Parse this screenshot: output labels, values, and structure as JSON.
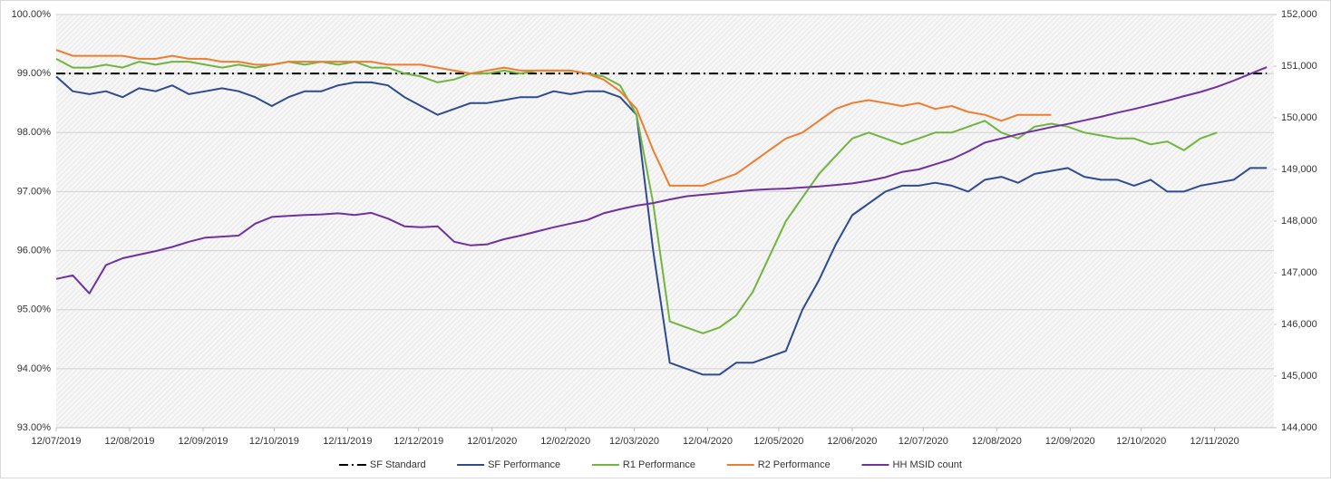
{
  "chart_data": {
    "type": "line",
    "x": [
      "2019-07-12",
      "2019-07-19",
      "2019-07-26",
      "2019-08-02",
      "2019-08-09",
      "2019-08-16",
      "2019-08-23",
      "2019-08-30",
      "2019-09-06",
      "2019-09-13",
      "2019-09-20",
      "2019-09-27",
      "2019-10-04",
      "2019-10-11",
      "2019-10-18",
      "2019-10-25",
      "2019-11-01",
      "2019-11-08",
      "2019-11-15",
      "2019-11-22",
      "2019-11-29",
      "2019-12-06",
      "2019-12-13",
      "2019-12-20",
      "2019-12-27",
      "2020-01-03",
      "2020-01-10",
      "2020-01-17",
      "2020-01-24",
      "2020-01-31",
      "2020-02-07",
      "2020-02-14",
      "2020-02-21",
      "2020-02-28",
      "2020-03-06",
      "2020-03-13",
      "2020-03-20",
      "2020-03-27",
      "2020-04-03",
      "2020-04-10",
      "2020-04-17",
      "2020-04-24",
      "2020-05-01",
      "2020-05-08",
      "2020-05-15",
      "2020-05-22",
      "2020-05-29",
      "2020-06-05",
      "2020-06-12",
      "2020-06-19",
      "2020-06-26",
      "2020-07-03",
      "2020-07-10",
      "2020-07-17",
      "2020-07-24",
      "2020-07-31",
      "2020-08-07",
      "2020-08-14",
      "2020-08-21",
      "2020-08-28",
      "2020-09-04",
      "2020-09-11",
      "2020-09-18",
      "2020-09-25",
      "2020-10-02",
      "2020-10-09",
      "2020-10-16",
      "2020-10-23",
      "2020-10-30",
      "2020-11-06",
      "2020-11-13",
      "2020-11-20",
      "2020-11-27",
      "2020-12-04"
    ],
    "xlim": [
      "2019-07-12",
      "2020-12-07"
    ],
    "xticks": [
      {
        "value": "2019-07-12",
        "label": "12/07/2019"
      },
      {
        "value": "2019-08-12",
        "label": "12/08/2019"
      },
      {
        "value": "2019-09-12",
        "label": "12/09/2019"
      },
      {
        "value": "2019-10-12",
        "label": "12/10/2019"
      },
      {
        "value": "2019-11-12",
        "label": "12/11/2019"
      },
      {
        "value": "2019-12-12",
        "label": "12/12/2019"
      },
      {
        "value": "2020-01-12",
        "label": "12/01/2020"
      },
      {
        "value": "2020-02-12",
        "label": "12/02/2020"
      },
      {
        "value": "2020-03-12",
        "label": "12/03/2020"
      },
      {
        "value": "2020-04-12",
        "label": "12/04/2020"
      },
      {
        "value": "2020-05-12",
        "label": "12/05/2020"
      },
      {
        "value": "2020-06-12",
        "label": "12/06/2020"
      },
      {
        "value": "2020-07-12",
        "label": "12/07/2020"
      },
      {
        "value": "2020-08-12",
        "label": "12/08/2020"
      },
      {
        "value": "2020-09-12",
        "label": "12/09/2020"
      },
      {
        "value": "2020-10-12",
        "label": "12/10/2020"
      },
      {
        "value": "2020-11-12",
        "label": "12/11/2020"
      }
    ],
    "ylim": [
      93,
      100
    ],
    "yticks": [
      {
        "value": 93,
        "label": "93.00%"
      },
      {
        "value": 94,
        "label": "94.00%"
      },
      {
        "value": 95,
        "label": "95.00%"
      },
      {
        "value": 96,
        "label": "96.00%"
      },
      {
        "value": 97,
        "label": "97.00%"
      },
      {
        "value": 98,
        "label": "98.00%"
      },
      {
        "value": 99,
        "label": "99.00%"
      },
      {
        "value": 100,
        "label": "100.00%"
      }
    ],
    "y2lim": [
      144000,
      152000
    ],
    "y2ticks": [
      {
        "value": 144000,
        "label": "144,000"
      },
      {
        "value": 145000,
        "label": "145,000"
      },
      {
        "value": 146000,
        "label": "146,000"
      },
      {
        "value": 147000,
        "label": "147,000"
      },
      {
        "value": 148000,
        "label": "148,000"
      },
      {
        "value": 149000,
        "label": "149,000"
      },
      {
        "value": 150000,
        "label": "150,000"
      },
      {
        "value": 151000,
        "label": "151,000"
      },
      {
        "value": 152000,
        "label": "152,000"
      }
    ],
    "grid": true,
    "legend": "bottom",
    "series": [
      {
        "name": "SF Standard",
        "color": "#000000",
        "dash": "dashdot",
        "values": [
          99,
          99,
          99,
          99,
          99,
          99,
          99,
          99,
          99,
          99,
          99,
          99,
          99,
          99,
          99,
          99,
          99,
          99,
          99,
          99,
          99,
          99,
          99,
          99,
          99,
          99,
          99,
          99,
          99,
          99,
          99,
          99,
          99,
          99,
          99,
          99,
          99,
          99,
          99,
          99,
          99,
          99,
          99,
          99,
          99,
          99,
          99,
          99,
          99,
          99,
          99,
          99,
          99,
          99,
          99,
          99,
          99,
          99,
          99,
          99,
          99,
          99,
          99,
          99,
          99,
          99,
          99,
          99,
          99,
          99,
          99,
          99,
          99,
          99
        ]
      },
      {
        "name": "SF Performance",
        "color": "#2f4b8f",
        "values": [
          98.95,
          98.7,
          98.65,
          98.7,
          98.6,
          98.75,
          98.7,
          98.8,
          98.65,
          98.7,
          98.75,
          98.7,
          98.6,
          98.45,
          98.6,
          98.7,
          98.7,
          98.8,
          98.85,
          98.85,
          98.8,
          98.6,
          98.45,
          98.3,
          98.4,
          98.5,
          98.5,
          98.55,
          98.6,
          98.6,
          98.7,
          98.65,
          98.7,
          98.7,
          98.6,
          98.3,
          96.0,
          94.1,
          94.0,
          93.9,
          93.9,
          94.1,
          94.1,
          94.2,
          94.3,
          95.0,
          95.5,
          96.1,
          96.6,
          96.8,
          97.0,
          97.1,
          97.1,
          97.15,
          97.1,
          97.0,
          97.2,
          97.25,
          97.15,
          97.3,
          97.35,
          97.4,
          97.25,
          97.2,
          97.2,
          97.1,
          97.2,
          97.0,
          97.0,
          97.1,
          97.15,
          97.2,
          97.4,
          97.4
        ]
      },
      {
        "name": "R1 Performance",
        "color": "#6fb53f",
        "values": [
          99.25,
          99.1,
          99.1,
          99.15,
          99.1,
          99.2,
          99.15,
          99.2,
          99.2,
          99.15,
          99.1,
          99.15,
          99.1,
          99.15,
          99.2,
          99.15,
          99.2,
          99.15,
          99.2,
          99.1,
          99.1,
          99.0,
          98.95,
          98.85,
          98.9,
          99.0,
          99.0,
          99.05,
          99.0,
          99.05,
          99.05,
          99.05,
          99.0,
          98.95,
          98.8,
          98.3,
          96.8,
          94.8,
          94.7,
          94.6,
          94.7,
          94.9,
          95.3,
          95.9,
          96.5,
          96.9,
          97.3,
          97.6,
          97.9,
          98.0,
          97.9,
          97.8,
          97.9,
          98.0,
          98.0,
          98.1,
          98.2,
          98.0,
          97.9,
          98.1,
          98.15,
          98.1,
          98.0,
          97.95,
          97.9,
          97.9,
          97.8,
          97.85,
          97.7,
          97.9,
          98.0,
          null,
          null,
          null
        ]
      },
      {
        "name": "R2 Performance",
        "color": "#ed7d31",
        "values": [
          99.4,
          99.3,
          99.3,
          99.3,
          99.3,
          99.25,
          99.25,
          99.3,
          99.25,
          99.25,
          99.2,
          99.2,
          99.15,
          99.15,
          99.2,
          99.2,
          99.2,
          99.2,
          99.2,
          99.2,
          99.15,
          99.15,
          99.15,
          99.1,
          99.05,
          99.0,
          99.05,
          99.1,
          99.05,
          99.05,
          99.05,
          99.05,
          99.0,
          98.9,
          98.7,
          98.4,
          97.7,
          97.1,
          97.1,
          97.1,
          97.2,
          97.3,
          97.5,
          97.7,
          97.9,
          98.0,
          98.2,
          98.4,
          98.5,
          98.55,
          98.5,
          98.45,
          98.5,
          98.4,
          98.45,
          98.35,
          98.3,
          98.2,
          98.3,
          98.3,
          98.3,
          null,
          null,
          null,
          null,
          null,
          null,
          null,
          null,
          null,
          null,
          null,
          null,
          null
        ]
      },
      {
        "name": "HH MSID count",
        "color": "#7030a0",
        "axis": "y2",
        "values": [
          146880,
          146950,
          146600,
          147150,
          147280,
          147350,
          147420,
          147500,
          147600,
          147680,
          147700,
          147720,
          147950,
          148080,
          148100,
          148120,
          148130,
          148150,
          148120,
          148160,
          148050,
          147900,
          147880,
          147900,
          147600,
          147530,
          147550,
          147650,
          147720,
          147800,
          147880,
          147950,
          148020,
          148150,
          148230,
          148300,
          148350,
          148420,
          148480,
          148510,
          148540,
          148570,
          148600,
          148620,
          148630,
          148650,
          148670,
          148700,
          148730,
          148780,
          148850,
          148950,
          149000,
          149100,
          149200,
          149350,
          149520,
          149600,
          149680,
          149750,
          149820,
          149880,
          149950,
          150020,
          150100,
          150170,
          150250,
          150330,
          150420,
          150500,
          150600,
          150720,
          150850,
          150980
        ]
      }
    ]
  }
}
